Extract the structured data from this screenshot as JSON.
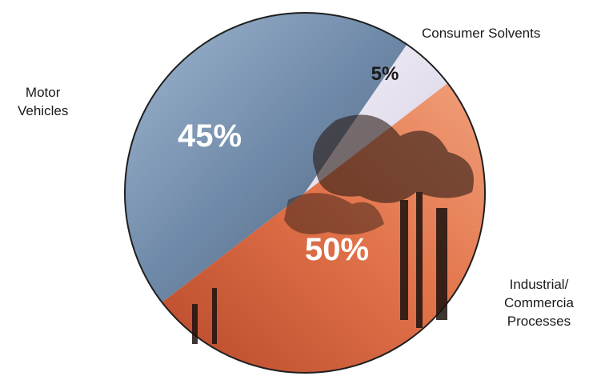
{
  "chart_data": {
    "type": "pie",
    "title": "",
    "categories": [
      "Motor Vehicles",
      "Consumer Solvents",
      "Industrial/ Commercia Processes"
    ],
    "values": [
      45,
      5,
      50
    ],
    "value_labels": [
      "45%",
      "5%",
      "50%"
    ],
    "legend": "none",
    "colors": {
      "motor_vehicles": "#6e8bb0",
      "consumer_solvents": "#e6e2ef",
      "industrial": "#e98050"
    }
  },
  "labels": {
    "motor_vehicles": [
      "Motor",
      "Vehicles"
    ],
    "consumer_solvents": [
      "Consumer Solvents"
    ],
    "industrial": [
      "Industrial/",
      "Commercia",
      "Processes"
    ]
  }
}
